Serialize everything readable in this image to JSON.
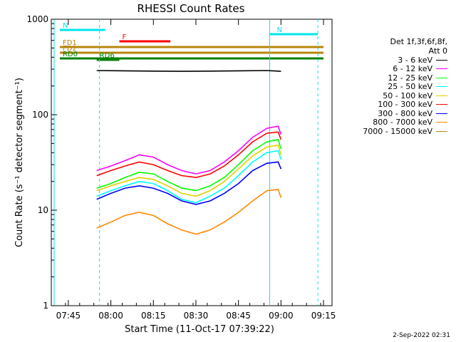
{
  "chart_data": {
    "type": "line",
    "title": "RHESSI Count Rates",
    "xlabel": "Start Time (11-Oct-17 07:39:22)",
    "ylabel": "Count Rate (s⁻¹ detector segment⁻¹)",
    "y_scale": "log",
    "ylim": [
      1,
      1000
    ],
    "xlim": [
      "07:39",
      "09:18"
    ],
    "x_tick_labels": [
      "07:45",
      "08:00",
      "08:15",
      "08:30",
      "08:45",
      "09:00",
      "09:15"
    ],
    "y_tick_labels": [
      "1",
      "10",
      "100",
      "1000"
    ],
    "legend_header": [
      "Det 1f,3f,6f,8f,",
      "Att 0"
    ],
    "legend_position": "right",
    "series": [
      {
        "name": "3 - 6 keV",
        "color": "#000000",
        "points": [
          [
            "07:55",
            290
          ],
          [
            "08:05",
            288
          ],
          [
            "08:15",
            286
          ],
          [
            "08:25",
            285
          ],
          [
            "08:35",
            286
          ],
          [
            "08:45",
            288
          ],
          [
            "08:55",
            290
          ],
          [
            "09:00",
            285
          ]
        ]
      },
      {
        "name": "6 - 12 keV",
        "color": "#ff00ff",
        "points": [
          [
            "07:55",
            26
          ],
          [
            "08:00",
            29
          ],
          [
            "08:05",
            33
          ],
          [
            "08:10",
            38
          ],
          [
            "08:15",
            36
          ],
          [
            "08:20",
            30
          ],
          [
            "08:25",
            26
          ],
          [
            "08:30",
            24
          ],
          [
            "08:35",
            26
          ],
          [
            "08:40",
            32
          ],
          [
            "08:45",
            42
          ],
          [
            "08:50",
            58
          ],
          [
            "08:55",
            72
          ],
          [
            "08:59",
            76
          ],
          [
            "09:00",
            62
          ]
        ]
      },
      {
        "name": "12 - 25 keV",
        "color": "#00ff00",
        "points": [
          [
            "07:55",
            17
          ],
          [
            "08:00",
            19
          ],
          [
            "08:05",
            22
          ],
          [
            "08:10",
            25
          ],
          [
            "08:15",
            24
          ],
          [
            "08:20",
            20
          ],
          [
            "08:25",
            17
          ],
          [
            "08:30",
            16
          ],
          [
            "08:35",
            18
          ],
          [
            "08:40",
            22
          ],
          [
            "08:45",
            30
          ],
          [
            "08:50",
            42
          ],
          [
            "08:55",
            52
          ],
          [
            "08:59",
            55
          ],
          [
            "09:00",
            44
          ]
        ]
      },
      {
        "name": "25 - 50 keV",
        "color": "#00ffff",
        "points": [
          [
            "07:55",
            14
          ],
          [
            "08:00",
            16
          ],
          [
            "08:05",
            18
          ],
          [
            "08:10",
            20
          ],
          [
            "08:15",
            19
          ],
          [
            "08:20",
            16
          ],
          [
            "08:25",
            13
          ],
          [
            "08:30",
            12
          ],
          [
            "08:35",
            14
          ],
          [
            "08:40",
            17
          ],
          [
            "08:45",
            23
          ],
          [
            "08:50",
            32
          ],
          [
            "08:55",
            40
          ],
          [
            "08:59",
            42
          ],
          [
            "09:00",
            34
          ]
        ]
      },
      {
        "name": "50 - 100 keV",
        "color": "#e0d000",
        "points": [
          [
            "07:55",
            16
          ],
          [
            "08:00",
            18
          ],
          [
            "08:05",
            20
          ],
          [
            "08:10",
            22
          ],
          [
            "08:15",
            21
          ],
          [
            "08:20",
            18
          ],
          [
            "08:25",
            15
          ],
          [
            "08:30",
            14
          ],
          [
            "08:35",
            16
          ],
          [
            "08:40",
            20
          ],
          [
            "08:45",
            27
          ],
          [
            "08:50",
            37
          ],
          [
            "08:55",
            46
          ],
          [
            "08:59",
            48
          ],
          [
            "09:00",
            38
          ]
        ]
      },
      {
        "name": "100 - 300 keV",
        "color": "#ff0000",
        "points": [
          [
            "07:55",
            23
          ],
          [
            "08:00",
            26
          ],
          [
            "08:05",
            29
          ],
          [
            "08:10",
            32
          ],
          [
            "08:15",
            30
          ],
          [
            "08:20",
            26
          ],
          [
            "08:25",
            23
          ],
          [
            "08:30",
            22
          ],
          [
            "08:35",
            24
          ],
          [
            "08:40",
            29
          ],
          [
            "08:45",
            38
          ],
          [
            "08:50",
            52
          ],
          [
            "08:55",
            64
          ],
          [
            "08:59",
            66
          ],
          [
            "09:00",
            55
          ]
        ]
      },
      {
        "name": "300 - 800 keV",
        "color": "#0000ff",
        "points": [
          [
            "07:55",
            13
          ],
          [
            "08:00",
            15
          ],
          [
            "08:05",
            17
          ],
          [
            "08:10",
            18
          ],
          [
            "08:15",
            17
          ],
          [
            "08:20",
            15
          ],
          [
            "08:25",
            12.5
          ],
          [
            "08:30",
            11.5
          ],
          [
            "08:35",
            12.5
          ],
          [
            "08:40",
            15
          ],
          [
            "08:45",
            19
          ],
          [
            "08:50",
            26
          ],
          [
            "08:55",
            31
          ],
          [
            "08:59",
            32
          ],
          [
            "09:00",
            27
          ]
        ]
      },
      {
        "name": "800 - 7000 keV",
        "color": "#ff8800",
        "points": [
          [
            "07:55",
            6.5
          ],
          [
            "08:00",
            7.5
          ],
          [
            "08:05",
            8.8
          ],
          [
            "08:10",
            9.5
          ],
          [
            "08:15",
            8.8
          ],
          [
            "08:20",
            7.2
          ],
          [
            "08:25",
            6.2
          ],
          [
            "08:30",
            5.6
          ],
          [
            "08:35",
            6.2
          ],
          [
            "08:40",
            7.5
          ],
          [
            "08:45",
            9.5
          ],
          [
            "08:50",
            12.5
          ],
          [
            "08:55",
            16
          ],
          [
            "08:59",
            16.5
          ],
          [
            "09:00",
            13.5
          ]
        ]
      },
      {
        "name": "7000 - 15000 keV",
        "color": "#b8860b",
        "points": []
      }
    ],
    "annotations": [
      {
        "label": "N",
        "color": "#00e5ee",
        "start": "07:42",
        "end": "07:58"
      },
      {
        "label": "N",
        "color": "#00e5ee",
        "start": "08:56",
        "end": "09:13"
      },
      {
        "label": "F",
        "color": "#ff0000",
        "start": "08:03",
        "end": "08:21"
      },
      {
        "label": "FD1",
        "color": "#b8860b",
        "start": "07:42",
        "end": "09:15"
      },
      {
        "label": "FD2",
        "color": "#b8860b",
        "start": "07:42",
        "end": "09:15"
      },
      {
        "label": "RD0",
        "color": "#008000",
        "start": "07:42",
        "end": "09:15"
      },
      {
        "label": "RD6",
        "color": "#008000",
        "start": "07:55",
        "end": "08:03"
      }
    ]
  },
  "timestamp": "2-Sep-2022 02:31"
}
